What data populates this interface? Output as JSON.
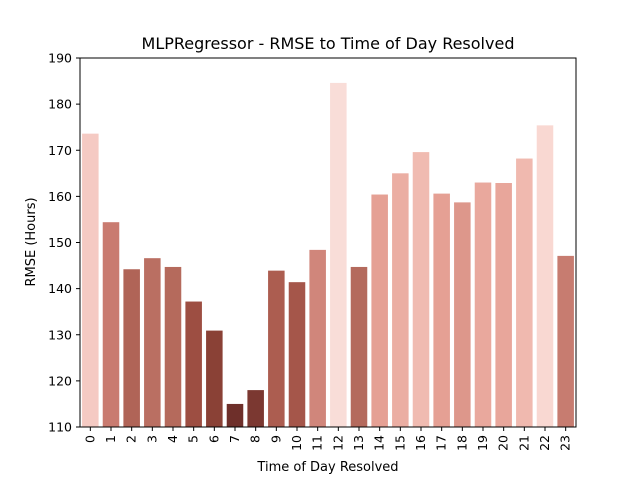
{
  "chart_data": {
    "type": "bar",
    "title": "MLPRegressor - RMSE to Time of Day Resolved",
    "xlabel": "Time of Day Resolved",
    "ylabel": "RMSE (Hours)",
    "ylim": [
      110,
      190
    ],
    "yticks": [
      "110",
      "120",
      "130",
      "140",
      "150",
      "160",
      "170",
      "180",
      "190"
    ],
    "categories": [
      "0",
      "1",
      "2",
      "3",
      "4",
      "5",
      "6",
      "7",
      "8",
      "9",
      "10",
      "11",
      "12",
      "13",
      "14",
      "15",
      "16",
      "17",
      "18",
      "19",
      "20",
      "21",
      "22",
      "23"
    ],
    "values": [
      173.6,
      154.4,
      144.2,
      146.6,
      144.7,
      137.2,
      130.9,
      115.0,
      118.0,
      143.9,
      141.4,
      148.4,
      184.6,
      144.7,
      160.4,
      165.0,
      169.6,
      160.6,
      158.7,
      163.0,
      162.9,
      168.2,
      175.4,
      147.1
    ],
    "colors": [
      "#f5cac3",
      "#c97b70",
      "#b06457",
      "#ba6f62",
      "#b56a5c",
      "#9d4e42",
      "#8a4136",
      "#6e2f2a",
      "#7b3831",
      "#ac5d50",
      "#a5564a",
      "#d0867b",
      "#f9ddd8",
      "#b46a5d",
      "#e5a094",
      "#ebaea3",
      "#f0bbb1",
      "#e5a094",
      "#dd978b",
      "#e9a89d",
      "#e8a69b",
      "#f0b9af",
      "#f9d8d2",
      "#c77c70"
    ],
    "grid": false,
    "legend": "none"
  }
}
